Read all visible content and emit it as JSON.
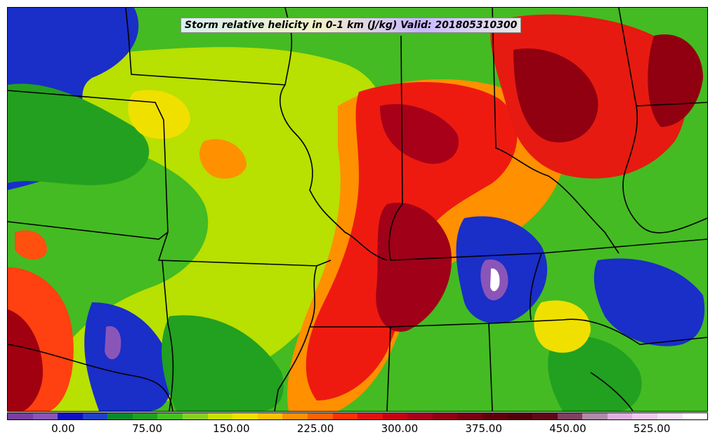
{
  "title": "Storm relative helicity in 0-1 km (J/kg) Valid: 201805310300",
  "colorbar": {
    "colors": [
      "#7a3ea0",
      "#8a55b8",
      "#1010c0",
      "#2040c8",
      "#0a8a2a",
      "#20a020",
      "#44c020",
      "#88d020",
      "#c8e000",
      "#f0e000",
      "#ffc000",
      "#ff9000",
      "#ff6000",
      "#ff3000",
      "#e01010",
      "#c80010",
      "#a80018",
      "#900010",
      "#780010",
      "#600008",
      "#500008",
      "#600818",
      "#804060",
      "#b08aa8",
      "#e0b0e0",
      "#f4c8f0",
      "#fce0fc",
      "#ffffff"
    ],
    "tick_labels": [
      "0.00",
      "75.00",
      "150.00",
      "225.00",
      "300.00",
      "375.00",
      "450.00",
      "525.00"
    ],
    "tick_values": [
      0,
      75,
      150,
      225,
      300,
      375,
      450,
      525
    ],
    "range": [
      -50,
      575
    ]
  }
}
